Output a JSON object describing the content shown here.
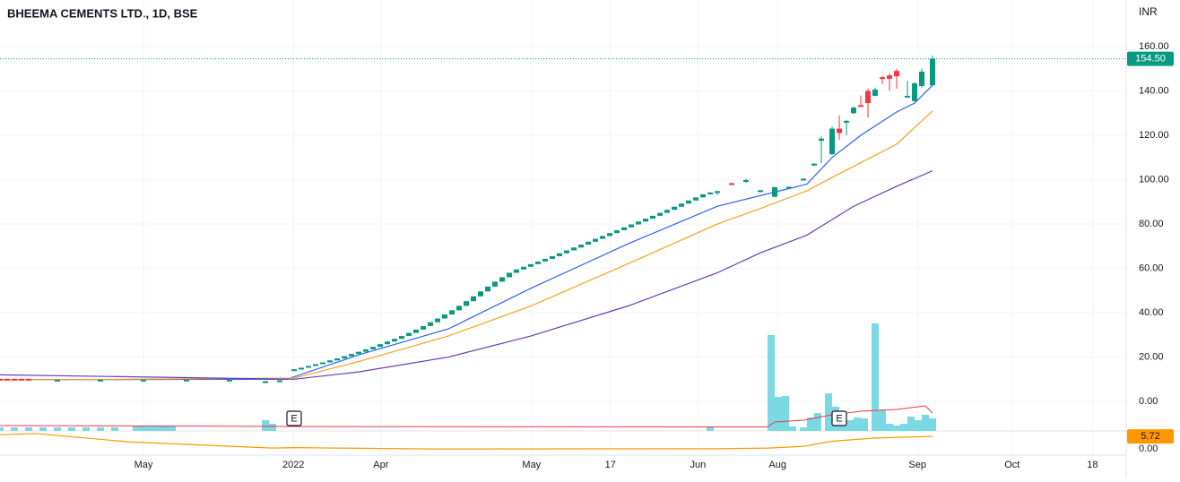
{
  "chart_data": {
    "type": "candlestick",
    "title": "BHEEMA CEMENTS LTD., 1D, BSE",
    "currency": "INR",
    "grid": true,
    "up_color": "#089981",
    "down_color": "#f23645",
    "xlim": [
      0,
      157
    ],
    "xticks": [
      {
        "value": 20,
        "label": "May"
      },
      {
        "value": 40.9,
        "label": "2022"
      },
      {
        "value": 53.1,
        "label": "Apr"
      },
      {
        "value": 74.1,
        "label": "May"
      },
      {
        "value": 85.1,
        "label": "17"
      },
      {
        "value": 97.3,
        "label": "Jun"
      },
      {
        "value": 108.4,
        "label": "Aug"
      },
      {
        "value": 127.9,
        "label": "Sep"
      },
      {
        "value": 141.1,
        "label": "Oct"
      },
      {
        "value": 152.3,
        "label": "18"
      }
    ],
    "ylim": [
      -13.3,
      181
    ],
    "yticks": [
      {
        "value": 0,
        "label": "0.00"
      },
      {
        "value": 20,
        "label": "20.00"
      },
      {
        "value": 40,
        "label": "40.00"
      },
      {
        "value": 60,
        "label": "60.00"
      },
      {
        "value": 80,
        "label": "80.00"
      },
      {
        "value": 100,
        "label": "100.00"
      },
      {
        "value": 120,
        "label": "120.00"
      },
      {
        "value": 140,
        "label": "140.00"
      },
      {
        "value": 160,
        "label": "160.00"
      }
    ],
    "last_price": {
      "value": 154.5,
      "label": "154.50"
    },
    "candles": {
      "x": [
        0,
        1,
        2,
        3,
        4,
        8,
        14,
        20,
        26,
        32,
        37,
        39,
        41,
        42,
        43,
        44,
        45,
        46,
        47,
        48,
        49,
        50,
        51,
        52,
        53,
        54,
        55,
        56,
        57,
        58,
        59,
        60,
        61,
        62,
        63,
        64,
        65,
        66,
        67,
        68,
        69,
        70,
        71,
        72,
        73,
        74,
        75,
        76,
        77,
        78,
        79,
        80,
        81,
        82,
        83,
        84,
        85,
        86,
        87,
        88,
        89,
        90,
        91,
        92,
        93,
        94,
        95,
        96,
        97,
        98,
        99,
        100,
        102,
        104,
        106,
        108,
        110,
        112,
        113.5,
        114.5,
        116,
        117,
        118,
        119,
        120,
        121,
        122,
        123,
        124,
        125,
        126.5,
        127.5,
        128.5,
        130
      ],
      "ohlc": [
        [
          10.2,
          10.3,
          9.8,
          9.9
        ],
        [
          10.2,
          10.3,
          9.8,
          9.9
        ],
        [
          10.2,
          10.3,
          9.8,
          9.9
        ],
        [
          10.2,
          10.3,
          9.8,
          9.9
        ],
        [
          10.2,
          10.3,
          9.8,
          9.9
        ],
        [
          9.7,
          9.9,
          9.6,
          9.8
        ],
        [
          9.7,
          9.9,
          9.6,
          9.8
        ],
        [
          9.7,
          9.9,
          9.6,
          9.8
        ],
        [
          9.7,
          9.9,
          9.6,
          9.8
        ],
        [
          9.7,
          9.9,
          9.6,
          9.8
        ],
        [
          9.0,
          9.2,
          8.9,
          9.1
        ],
        [
          9.1,
          9.6,
          9.0,
          9.5
        ],
        [
          13.8,
          14.6,
          13.8,
          14.5
        ],
        [
          14.5,
          15.2,
          14.5,
          15.2
        ],
        [
          15.2,
          16.0,
          15.2,
          16.0
        ],
        [
          16.0,
          16.8,
          16.0,
          16.8
        ],
        [
          16.8,
          17.6,
          16.8,
          17.6
        ],
        [
          17.6,
          18.5,
          17.6,
          18.5
        ],
        [
          18.5,
          19.4,
          18.5,
          19.4
        ],
        [
          19.4,
          20.4,
          19.4,
          20.4
        ],
        [
          20.4,
          21.4,
          20.4,
          21.4
        ],
        [
          21.4,
          22.4,
          21.4,
          22.4
        ],
        [
          22.4,
          23.5,
          22.4,
          23.5
        ],
        [
          23.5,
          24.6,
          23.5,
          24.6
        ],
        [
          24.6,
          25.8,
          24.6,
          25.8
        ],
        [
          25.8,
          27.0,
          25.8,
          27.0
        ],
        [
          27.0,
          28.2,
          27.0,
          28.2
        ],
        [
          28.2,
          29.5,
          28.2,
          29.5
        ],
        [
          29.5,
          30.9,
          29.5,
          30.9
        ],
        [
          30.9,
          32.4,
          30.9,
          32.4
        ],
        [
          32.4,
          34.0,
          32.4,
          34.0
        ],
        [
          34.0,
          35.7,
          34.0,
          35.7
        ],
        [
          35.7,
          37.4,
          35.7,
          37.4
        ],
        [
          37.4,
          39.2,
          37.4,
          39.2
        ],
        [
          39.2,
          41.1,
          39.2,
          41.1
        ],
        [
          41.1,
          43.1,
          41.1,
          43.1
        ],
        [
          43.1,
          45.2,
          43.1,
          45.2
        ],
        [
          45.2,
          47.4,
          45.2,
          47.4
        ],
        [
          47.4,
          49.6,
          47.4,
          49.6
        ],
        [
          49.6,
          51.8,
          49.6,
          51.8
        ],
        [
          51.8,
          54.0,
          51.8,
          54.0
        ],
        [
          54.0,
          56.0,
          54.0,
          56.0
        ],
        [
          56.0,
          58.0,
          56.0,
          58.0
        ],
        [
          58.0,
          59.5,
          58.0,
          59.5
        ],
        [
          59.5,
          60.7,
          59.5,
          60.7
        ],
        [
          60.7,
          61.9,
          60.7,
          61.9
        ],
        [
          61.9,
          63.1,
          61.9,
          63.1
        ],
        [
          63.1,
          64.3,
          63.1,
          64.3
        ],
        [
          64.3,
          65.5,
          64.3,
          65.5
        ],
        [
          65.5,
          66.8,
          65.5,
          66.8
        ],
        [
          66.8,
          68.1,
          66.8,
          68.1
        ],
        [
          68.1,
          69.4,
          68.1,
          69.4
        ],
        [
          69.4,
          70.7,
          69.4,
          70.7
        ],
        [
          70.7,
          72.0,
          70.7,
          72.0
        ],
        [
          72.0,
          73.3,
          72.0,
          73.3
        ],
        [
          73.3,
          74.6,
          73.3,
          74.6
        ],
        [
          74.6,
          75.9,
          74.6,
          75.9
        ],
        [
          75.9,
          77.2,
          75.9,
          77.2
        ],
        [
          77.2,
          78.5,
          77.2,
          78.5
        ],
        [
          78.5,
          79.8,
          78.5,
          79.8
        ],
        [
          79.8,
          81.1,
          79.8,
          81.1
        ],
        [
          81.1,
          82.4,
          81.1,
          82.4
        ],
        [
          82.4,
          83.7,
          82.4,
          83.7
        ],
        [
          83.7,
          85.0,
          83.7,
          85.0
        ],
        [
          85.0,
          86.4,
          85.0,
          86.4
        ],
        [
          86.4,
          87.8,
          86.4,
          87.8
        ],
        [
          87.8,
          89.2,
          87.8,
          89.2
        ],
        [
          89.2,
          90.6,
          89.2,
          90.6
        ],
        [
          90.6,
          92.0,
          90.6,
          92.0
        ],
        [
          92.0,
          93.4,
          92.0,
          93.4
        ],
        [
          93.4,
          94.5,
          93.2,
          94.2
        ],
        [
          94.2,
          95.0,
          93.0,
          94.8
        ],
        [
          98.4,
          98.6,
          97.8,
          98.0
        ],
        [
          99.6,
          100.4,
          98.5,
          99.8
        ],
        [
          94.8,
          95.4,
          94.6,
          95.2
        ],
        [
          92.3,
          96.8,
          92.0,
          96.6
        ],
        [
          96.4,
          97.0,
          96.2,
          96.8
        ],
        [
          99.8,
          100.6,
          99.6,
          100.4
        ],
        [
          106.5,
          107.4,
          106.2,
          107.2
        ],
        [
          117.5,
          119.5,
          107.5,
          118.5
        ],
        [
          111.5,
          124,
          111,
          123
        ],
        [
          123,
          129,
          118,
          121
        ],
        [
          126,
          127,
          120,
          126.5
        ],
        [
          130,
          133,
          129.5,
          132.5
        ],
        [
          133.6,
          138,
          133,
          133.2
        ],
        [
          140,
          141,
          128,
          134.5
        ],
        [
          137.8,
          141.5,
          137.5,
          140.6
        ],
        [
          146.2,
          146.8,
          143,
          145.8
        ],
        [
          147,
          148,
          140,
          145.5
        ],
        [
          149,
          150,
          141,
          146.6
        ],
        [
          137.2,
          144.6,
          137,
          137.8
        ],
        [
          135.4,
          144,
          135,
          143.4
        ],
        [
          142.2,
          150,
          141.5,
          148.7
        ],
        [
          142.6,
          156,
          142,
          154.5
        ]
      ]
    },
    "lines": [
      {
        "color": "#2962ff",
        "x": [
          0,
          40,
          50,
          62.5,
          74,
          87.5,
          100,
          107.5,
          112.5,
          116,
          120,
          125,
          127.5,
          130
        ],
        "values": [
          9.8,
          10,
          21,
          32.7,
          51,
          71,
          88,
          94,
          98,
          110,
          120,
          130.5,
          134.5,
          142.6
        ]
      },
      {
        "color": "#f7a21b",
        "x": [
          0,
          41,
          50,
          62.5,
          74,
          87.5,
          100,
          106,
          112.5,
          116,
          125,
          130
        ],
        "values": [
          9.7,
          10.5,
          18,
          29.5,
          43,
          62,
          80,
          87,
          95,
          101,
          116,
          131
        ]
      },
      {
        "color": "#673ab7",
        "x": [
          0,
          41,
          50,
          62.5,
          74,
          87.5,
          100,
          106,
          112.5,
          119,
          125,
          130
        ],
        "values": [
          12,
          10,
          13.3,
          20,
          29.5,
          43,
          58,
          67,
          75,
          88,
          97,
          104
        ]
      }
    ],
    "volume": {
      "color": "#7ad9e2",
      "vlim": [
        0,
        130
      ],
      "x": [
        0,
        2,
        4,
        6,
        8,
        10,
        12,
        14,
        16,
        19,
        20,
        21,
        22,
        23,
        24,
        37,
        38,
        99,
        107.5,
        108.5,
        109.5,
        110.5,
        112,
        113,
        114,
        115.5,
        116.5,
        117.5,
        118.5,
        119.5,
        120.5,
        122,
        123,
        124,
        125,
        126,
        127,
        128,
        129,
        130
      ],
      "values": [
        4,
        4,
        4,
        4,
        4,
        4,
        4,
        4,
        4,
        6,
        6,
        6,
        6,
        6,
        6,
        12,
        8,
        4,
        107,
        38,
        39,
        5,
        4,
        15,
        20,
        42,
        27,
        20,
        12,
        15,
        14,
        120,
        24,
        8,
        6,
        8,
        16,
        12,
        18,
        14
      ]
    },
    "volume_ma": {
      "color": "#f23645",
      "x": [
        0,
        40,
        100,
        107,
        108,
        112,
        116,
        120,
        125,
        129,
        130
      ],
      "values": [
        6,
        5,
        4.5,
        4.5,
        10,
        12,
        18,
        22,
        24,
        28,
        20
      ]
    },
    "indicator": {
      "color": "#ff9800",
      "ylim": [
        -13,
        8.2
      ],
      "yticks": [
        {
          "value": 0,
          "label": "0.00"
        }
      ],
      "x": [
        0,
        5,
        18,
        38,
        41,
        60,
        100,
        107,
        112,
        116,
        122,
        130
      ],
      "values": [
        6.5,
        7,
        3.2,
        0.4,
        0.6,
        0,
        0.1,
        0.4,
        1.2,
        3.5,
        5,
        5.72
      ]
    },
    "events": [
      {
        "x": 41,
        "label": "E"
      },
      {
        "x": 117,
        "label": "E"
      }
    ]
  }
}
